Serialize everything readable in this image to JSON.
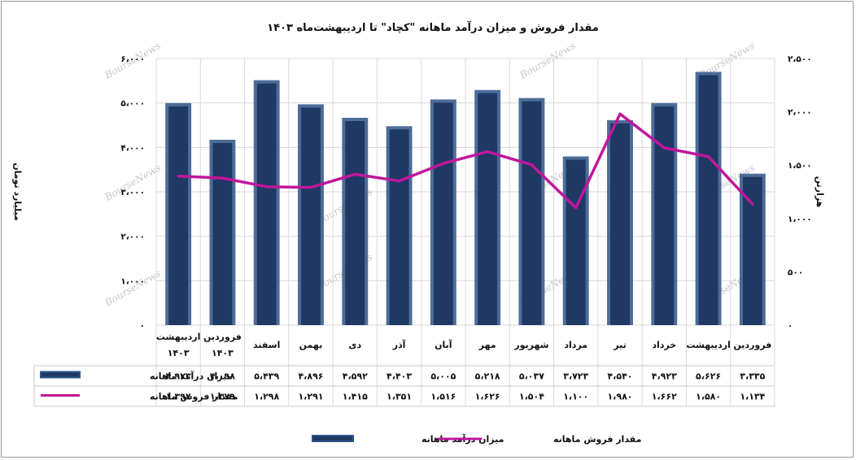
{
  "chart_data": {
    "type": "bar",
    "title": "مقدار فروش  و میزان درآمد ماهانه \"کچاد\" تا اردیبهشت‌ماه ۱۴۰۳",
    "ylabel": "میلیارد تومان",
    "y2label": "هزارتن",
    "ylim": [
      0,
      6000
    ],
    "y2lim": [
      0,
      2500
    ],
    "yticks": [
      "۰",
      "۱،۰۰۰",
      "۲،۰۰۰",
      "۳،۰۰۰",
      "۴،۰۰۰",
      "۵،۰۰۰",
      "۶،۰۰۰"
    ],
    "y2ticks": [
      "۰",
      "۵۰۰",
      "۱،۰۰۰",
      "۱،۵۰۰",
      "۲،۰۰۰",
      "۲،۵۰۰"
    ],
    "categories": [
      "فروردین",
      "اردیبهشت",
      "خرداد",
      "تیر",
      "مرداد",
      "شهریور",
      "مهر",
      "آبان",
      "آذر",
      "دی",
      "بهمن",
      "اسفند",
      "فروردین ۱۴۰۳",
      "اردیبهشت ۱۴۰۳"
    ],
    "series": [
      {
        "name": "میزان درآمد ماهانه",
        "type": "bar",
        "axis": "left",
        "color": "#1f3864",
        "values": [
          3335,
          5626,
          4923,
          4540,
          3723,
          5037,
          5218,
          5005,
          4403,
          4592,
          4896,
          5439,
          4098,
          4923
        ],
        "labels": [
          "۳،۳۳۵",
          "۵،۶۲۶",
          "۴،۹۲۳",
          "۴،۵۴۰",
          "۳،۷۲۳",
          "۵،۰۳۷",
          "۵،۲۱۸",
          "۵،۰۰۵",
          "۴،۴۰۳",
          "۴،۵۹۲",
          "۴،۸۹۶",
          "۵،۴۳۹",
          "۴،۰۹۸",
          "۴،۹۲۳"
        ]
      },
      {
        "name": "مقدار فروش ماهانه",
        "type": "line",
        "axis": "right",
        "color": "#c0169c",
        "values": [
          1134,
          1580,
          1662,
          1980,
          1100,
          1504,
          1626,
          1516,
          1351,
          1415,
          1291,
          1298,
          1379,
          1397
        ],
        "labels": [
          "۱،۱۳۴",
          "۱،۵۸۰",
          "۱،۶۶۲",
          "۱،۹۸۰",
          "۱،۱۰۰",
          "۱،۵۰۴",
          "۱،۶۲۶",
          "۱،۵۱۶",
          "۱،۳۵۱",
          "۱،۴۱۵",
          "۱،۲۹۱",
          "۱،۲۹۸",
          "۱،۳۷۹",
          "۱،۳۹۷"
        ]
      }
    ],
    "legend_position": "bottom",
    "grid": true
  },
  "watermark": "BourseNews"
}
